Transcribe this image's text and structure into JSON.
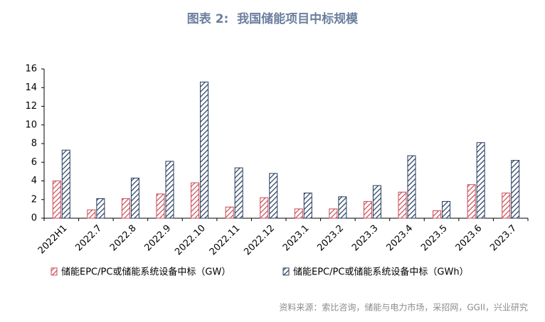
{
  "chart_data": {
    "type": "bar",
    "title": "图表 2:  我国储能项目中标规模",
    "source": "资料来源：索比咨询，储能与电力市场，采招网，GGII，兴业研究",
    "categories": [
      "2022H1",
      "2022.7",
      "2022.8",
      "2022.9",
      "2022.10",
      "2022.11",
      "2022.12",
      "2023.1",
      "2023.2",
      "2023.3",
      "2023.4",
      "2023.5",
      "2023.6",
      "2023.7"
    ],
    "series": [
      {
        "name": "储能EPC/PC或储能系统设备中标（GW）",
        "color": "#c94a55",
        "values": [
          4.0,
          0.9,
          2.1,
          2.6,
          3.8,
          1.2,
          2.2,
          1.0,
          1.0,
          1.8,
          2.8,
          0.8,
          3.6,
          2.7
        ]
      },
      {
        "name": "储能EPC/PC或储能系统设备中标（GWh）",
        "color": "#243a5e",
        "values": [
          7.3,
          2.1,
          4.3,
          6.1,
          14.6,
          5.4,
          4.8,
          2.7,
          2.3,
          3.5,
          6.7,
          1.8,
          8.1,
          6.2
        ]
      }
    ],
    "ylim": [
      0,
      16
    ],
    "yticks": [
      0,
      2,
      4,
      6,
      8,
      10,
      12,
      14,
      16
    ]
  }
}
